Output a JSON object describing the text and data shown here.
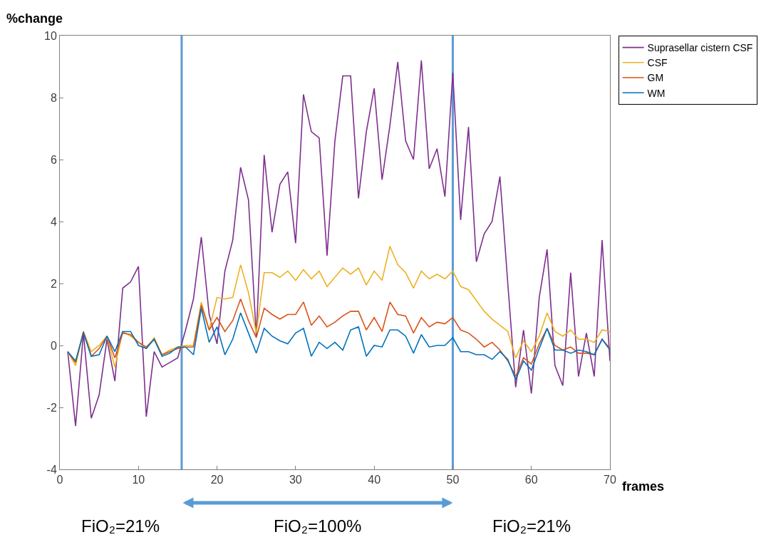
{
  "chart_data": {
    "type": "line",
    "xlabel": "frames",
    "ylabel": "%change",
    "x": [
      1,
      2,
      3,
      4,
      5,
      6,
      7,
      8,
      9,
      10,
      11,
      12,
      13,
      14,
      15,
      16,
      17,
      18,
      19,
      20,
      21,
      22,
      23,
      24,
      25,
      26,
      27,
      28,
      29,
      30,
      31,
      32,
      33,
      34,
      35,
      36,
      37,
      38,
      39,
      40,
      41,
      42,
      43,
      44,
      45,
      46,
      47,
      48,
      49,
      50,
      51,
      52,
      53,
      54,
      55,
      56,
      57,
      58,
      59,
      60,
      61,
      62,
      63,
      64,
      65,
      66,
      67,
      68,
      69,
      70
    ],
    "series": [
      {
        "name": "Suprasellar cistern CSF",
        "color": "#7e2f8e",
        "values": [
          -0.2,
          -2.6,
          0.4,
          -2.35,
          -1.6,
          0.2,
          -1.15,
          1.85,
          2.05,
          2.55,
          -2.3,
          -0.2,
          -0.7,
          -0.55,
          -0.4,
          0.5,
          1.5,
          3.5,
          1.0,
          0.05,
          2.4,
          3.4,
          5.75,
          4.7,
          0.3,
          6.15,
          3.65,
          5.2,
          5.6,
          3.3,
          8.1,
          6.9,
          6.7,
          2.9,
          6.6,
          8.7,
          8.7,
          4.75,
          6.9,
          8.3,
          5.35,
          7.1,
          9.15,
          6.6,
          6.0,
          9.2,
          5.7,
          6.35,
          4.8,
          8.8,
          4.05,
          7.05,
          2.7,
          3.6,
          4.0,
          5.45,
          2.0,
          -1.35,
          0.5,
          -1.55,
          1.55,
          3.1,
          -0.65,
          -1.3,
          2.35,
          -1.0,
          0.4,
          -1.0,
          3.4,
          -0.5
        ]
      },
      {
        "name": "CSF",
        "color": "#edb120",
        "values": [
          -0.2,
          -0.65,
          0.45,
          -0.2,
          0.0,
          0.3,
          -0.7,
          0.45,
          0.3,
          0.1,
          -0.1,
          0.25,
          -0.3,
          -0.15,
          -0.05,
          0.0,
          0.0,
          1.4,
          0.5,
          1.55,
          1.5,
          1.55,
          2.6,
          1.7,
          0.4,
          2.35,
          2.35,
          2.2,
          2.4,
          2.1,
          2.45,
          2.15,
          2.4,
          1.9,
          2.2,
          2.5,
          2.3,
          2.5,
          1.95,
          2.4,
          2.1,
          3.2,
          2.6,
          2.35,
          1.85,
          2.4,
          2.15,
          2.3,
          2.15,
          2.4,
          1.9,
          1.8,
          1.45,
          1.1,
          0.85,
          0.65,
          0.45,
          -0.4,
          0.15,
          -0.2,
          0.3,
          1.05,
          0.45,
          0.3,
          0.5,
          0.2,
          0.2,
          0.1,
          0.5,
          0.45
        ]
      },
      {
        "name": "GM",
        "color": "#d95319",
        "values": [
          -0.2,
          -0.55,
          0.45,
          -0.35,
          -0.1,
          0.3,
          -0.4,
          0.4,
          0.35,
          0.1,
          -0.05,
          0.2,
          -0.3,
          -0.2,
          -0.1,
          -0.05,
          -0.05,
          1.3,
          0.5,
          0.9,
          0.45,
          0.8,
          1.5,
          0.8,
          0.25,
          1.2,
          1.0,
          0.85,
          1.0,
          1.0,
          1.4,
          0.65,
          0.95,
          0.6,
          0.75,
          0.95,
          1.1,
          1.1,
          0.5,
          0.9,
          0.45,
          1.4,
          1.0,
          0.95,
          0.4,
          0.9,
          0.6,
          0.75,
          0.7,
          0.9,
          0.5,
          0.4,
          0.2,
          -0.05,
          0.1,
          -0.15,
          -0.5,
          -1.0,
          -0.4,
          -0.6,
          0.05,
          0.55,
          0.0,
          -0.15,
          -0.05,
          -0.25,
          -0.25,
          -0.3,
          0.2,
          -0.1
        ]
      },
      {
        "name": "WM",
        "color": "#0072bd",
        "values": [
          -0.2,
          -0.5,
          0.4,
          -0.35,
          -0.3,
          0.3,
          -0.2,
          0.45,
          0.45,
          0.0,
          -0.1,
          0.2,
          -0.35,
          -0.25,
          -0.05,
          -0.05,
          -0.3,
          1.2,
          0.1,
          0.6,
          -0.3,
          0.2,
          1.05,
          0.4,
          -0.25,
          0.55,
          0.3,
          0.15,
          0.05,
          0.4,
          0.55,
          -0.35,
          0.1,
          -0.1,
          0.1,
          -0.15,
          0.5,
          0.6,
          -0.35,
          0.0,
          -0.05,
          0.5,
          0.5,
          0.3,
          -0.25,
          0.35,
          -0.05,
          0.0,
          0.0,
          0.25,
          -0.2,
          -0.2,
          -0.3,
          -0.3,
          -0.45,
          -0.2,
          -0.45,
          -1.1,
          -0.5,
          -0.8,
          -0.1,
          0.55,
          -0.15,
          -0.15,
          -0.25,
          -0.15,
          -0.2,
          -0.3,
          0.2,
          -0.15
        ]
      }
    ],
    "xlim": [
      0,
      70
    ],
    "xticks": [
      0,
      10,
      20,
      30,
      40,
      50,
      60,
      70
    ],
    "ylim": [
      -4,
      10
    ],
    "yticks": [
      -4,
      -2,
      0,
      2,
      4,
      6,
      8,
      10
    ],
    "ref_lines": [
      {
        "axis": "x",
        "value": 15.5,
        "color": "#5b9bd5"
      },
      {
        "axis": "x",
        "value": 50,
        "color": "#5b9bd5"
      }
    ],
    "annotations": [
      "FiO₂=21%",
      "FiO₂=100%",
      "FiO₂=21%"
    ],
    "grid": false,
    "legend": "top right",
    "marker": "none",
    "line_style": "solid"
  }
}
